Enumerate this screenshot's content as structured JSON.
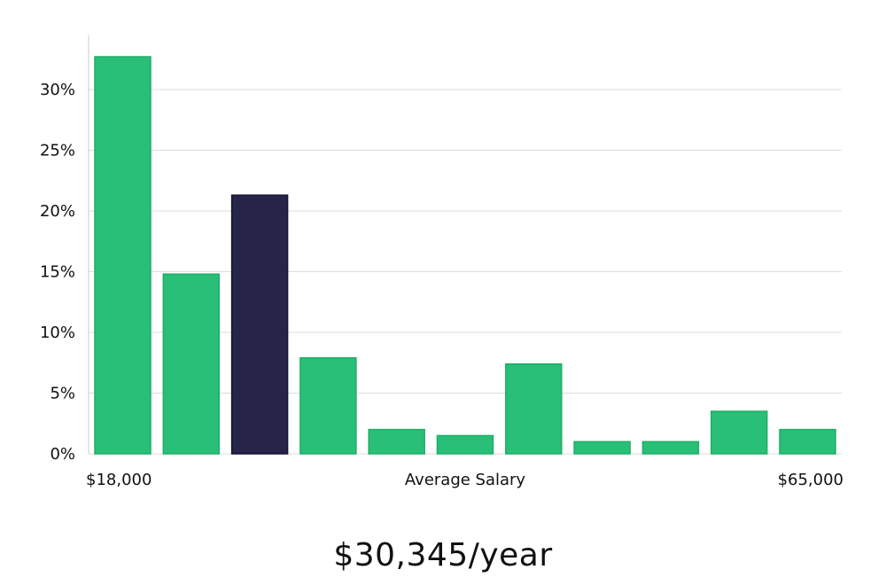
{
  "chart_data": {
    "type": "bar",
    "title": "",
    "xlabel": "Average Salary",
    "ylabel": "",
    "x_range_labels": {
      "min": "$18,000",
      "max": "$65,000"
    },
    "y_ticks": [
      "0%",
      "5%",
      "10%",
      "15%",
      "20%",
      "25%",
      "30%"
    ],
    "ylim": [
      0,
      34
    ],
    "grid": true,
    "values": [
      32.7,
      14.8,
      21.3,
      7.9,
      2.0,
      1.5,
      7.4,
      1.0,
      1.0,
      3.5,
      2.0
    ],
    "highlight_index": 2,
    "colors": {
      "bar": "#29bf77",
      "bar_stroke": "#1fae68",
      "highlight": "#27244a",
      "grid": "#dcdcdc",
      "axis": "#cccccc"
    }
  },
  "summary": {
    "salary_text": "$30,345/year"
  }
}
